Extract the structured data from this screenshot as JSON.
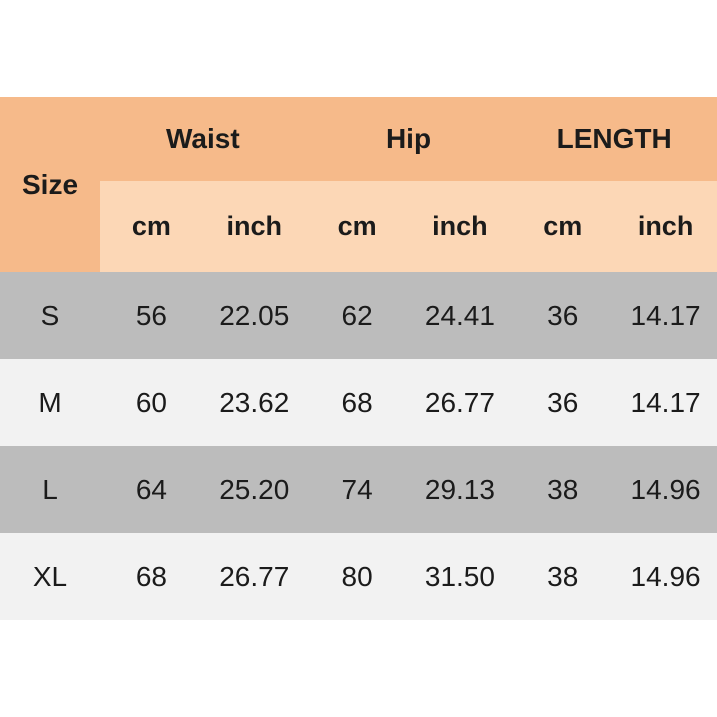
{
  "table": {
    "size_header": "Size",
    "groups": [
      {
        "label": "Waist"
      },
      {
        "label": "Hip"
      },
      {
        "label": "LENGTH"
      }
    ],
    "unit_headers": [
      "cm",
      "inch",
      "cm",
      "inch",
      "cm",
      "inch"
    ],
    "rows": [
      {
        "size": "S",
        "values": [
          "56",
          "22.05",
          "62",
          "24.41",
          "36",
          "14.17"
        ]
      },
      {
        "size": "M",
        "values": [
          "60",
          "23.62",
          "68",
          "26.77",
          "36",
          "14.17"
        ]
      },
      {
        "size": "L",
        "values": [
          "64",
          "25.20",
          "74",
          "29.13",
          "38",
          "14.96"
        ]
      },
      {
        "size": "XL",
        "values": [
          "68",
          "26.77",
          "80",
          "31.50",
          "38",
          "14.96"
        ]
      }
    ]
  },
  "colors": {
    "header-dark": "#F6BA8A",
    "header-light": "#FCD7B6",
    "row-gray": "#BCBCBC",
    "row-light": "#F2F2F2",
    "text": "#1B1B1B",
    "page-bg": "#FFFFFF"
  },
  "chart_data": {
    "type": "table",
    "column_groups": [
      {
        "label": "Waist",
        "columns": [
          "cm",
          "inch"
        ]
      },
      {
        "label": "Hip",
        "columns": [
          "cm",
          "inch"
        ]
      },
      {
        "label": "LENGTH",
        "columns": [
          "cm",
          "inch"
        ]
      }
    ],
    "columns": [
      "Size",
      "Waist cm",
      "Waist inch",
      "Hip cm",
      "Hip inch",
      "LENGTH cm",
      "LENGTH inch"
    ],
    "rows": [
      [
        "S",
        56,
        22.05,
        62,
        24.41,
        36,
        14.17
      ],
      [
        "M",
        60,
        23.62,
        68,
        26.77,
        36,
        14.17
      ],
      [
        "L",
        64,
        25.2,
        74,
        29.13,
        38,
        14.96
      ],
      [
        "XL",
        68,
        26.77,
        80,
        31.5,
        38,
        14.96
      ]
    ],
    "layout": {
      "header_background": "#F6BA8A",
      "subheader_background": "#FCD7B6",
      "row_stripe_colors": [
        "#BCBCBC",
        "#F2F2F2"
      ],
      "grid": false,
      "legend": "none"
    }
  }
}
